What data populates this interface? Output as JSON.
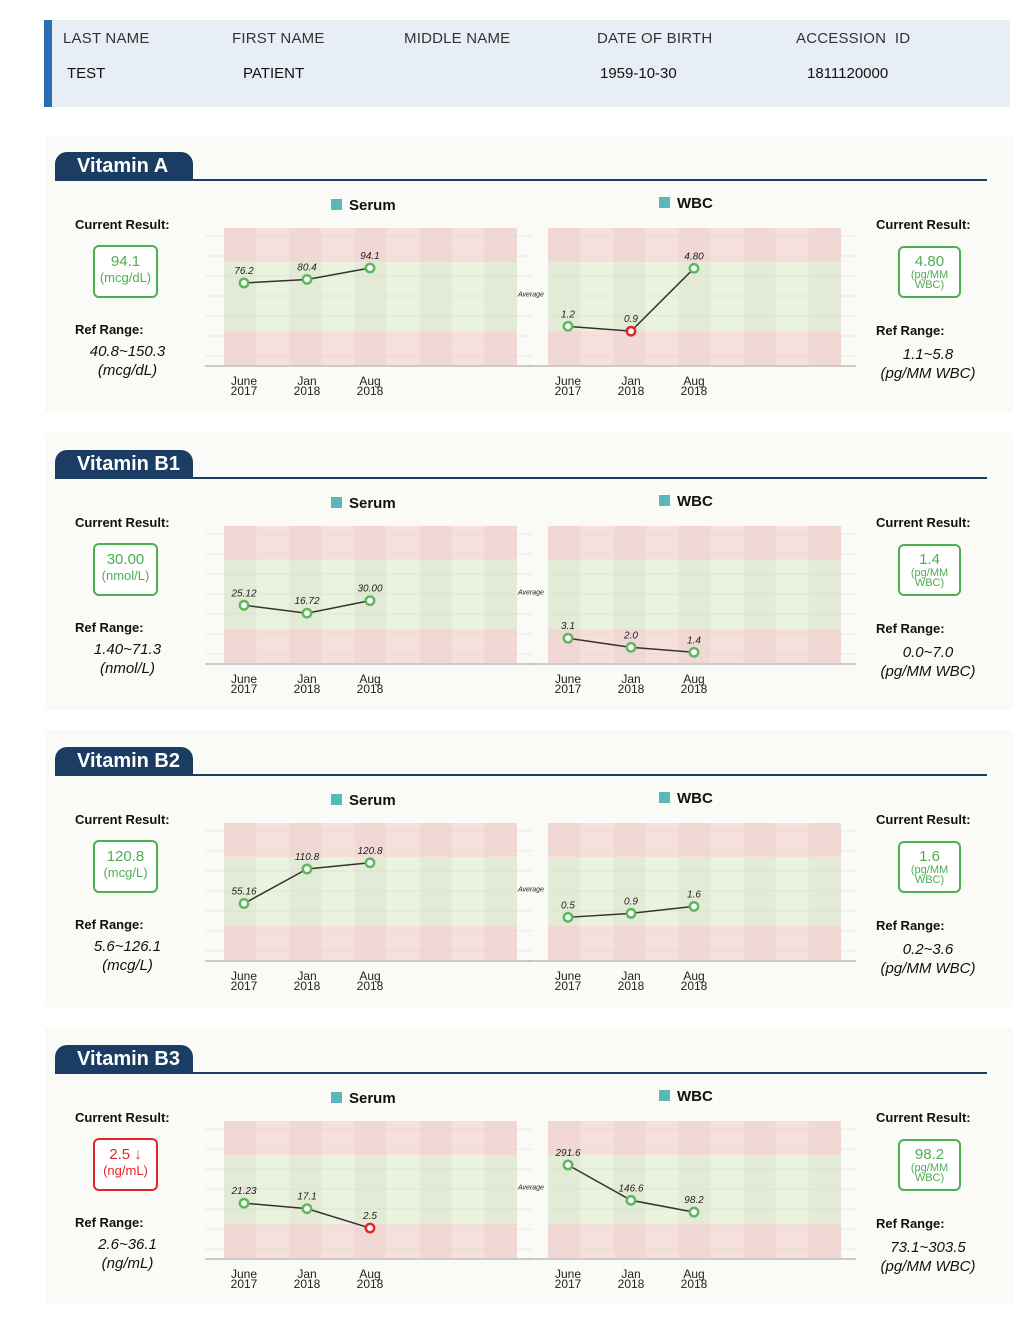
{
  "patient": {
    "headers": [
      "LAST NAME",
      "FIRST NAME",
      "MIDDLE NAME",
      "DATE OF BIRTH",
      "ACCESSION  ID"
    ],
    "values": [
      "TEST",
      "PATIENT",
      "",
      "1959-10-30",
      "1811120000"
    ]
  },
  "labels": {
    "current_result": "Current Result:",
    "ref_range": "Ref Range:",
    "serum": "Serum",
    "wbc": "WBC",
    "average": "Average"
  },
  "colors": {
    "navy": "#1b3d63",
    "normal": "#4caf50",
    "low": "#e0262a",
    "legend": "#5bb8b8"
  },
  "x_labels": [
    [
      "June",
      "2017"
    ],
    [
      "Jan",
      "2018"
    ],
    [
      "Aug",
      "2018"
    ]
  ],
  "sections": [
    {
      "title": "Vitamin A",
      "serum": {
        "current": "94.1",
        "unit": "(mcg/dL)",
        "flag": "normal",
        "ref": "40.8~150.3",
        "ref_unit": "(mcg/dL)",
        "ylim": [
          -22,
          142
        ],
        "points": [
          {
            "label": "76.2",
            "value": 76.2,
            "flag": "normal"
          },
          {
            "label": "80.4",
            "value": 80.4,
            "flag": "normal"
          },
          {
            "label": "94.1",
            "value": 94.1,
            "flag": "normal"
          }
        ]
      },
      "wbc": {
        "current": "4.80",
        "unit": "(pg/MM WBC)",
        "flag": "normal",
        "ref": "1.1~5.8",
        "ref_unit": "(pg/MM WBC)",
        "ylim": [
          -1.2,
          7.3
        ],
        "points": [
          {
            "label": "1.2",
            "value": 1.2,
            "flag": "normal"
          },
          {
            "label": "0.9",
            "value": 0.9,
            "flag": "low"
          },
          {
            "label": "4.80",
            "value": 4.8,
            "flag": "normal"
          }
        ]
      }
    },
    {
      "title": "Vitamin B1",
      "serum": {
        "current": "30.00",
        "unit": "(nmol/L)",
        "flag": "normal",
        "ref": "1.40~71.3",
        "ref_unit": "(nmol/L)",
        "ylim": [
          -36,
          109
        ],
        "points": [
          {
            "label": "25.12",
            "value": 25.12,
            "flag": "normal"
          },
          {
            "label": "16.72",
            "value": 16.72,
            "flag": "normal"
          },
          {
            "label": "30.00",
            "value": 30.0,
            "flag": "normal"
          }
        ]
      },
      "wbc": {
        "current": "1.4",
        "unit": "(pg/MM WBC)",
        "flag": "normal",
        "ref": "0.0~7.0",
        "ref_unit": "(pg/MM WBC)",
        "ylim": [
          0.1,
          16.7
        ],
        "points": [
          {
            "label": "3.1",
            "value": 3.1,
            "flag": "normal"
          },
          {
            "label": "2.0",
            "value": 2.0,
            "flag": "normal"
          },
          {
            "label": "1.4",
            "value": 1.4,
            "flag": "normal"
          }
        ]
      }
    },
    {
      "title": "Vitamin B2",
      "serum": {
        "current": "120.8",
        "unit": "(mcg/L)",
        "flag": "normal",
        "ref": "5.6~126.1",
        "ref_unit": "(mcg/L)",
        "ylim": [
          -36,
          185
        ],
        "points": [
          {
            "label": "55.16",
            "value": 55.16,
            "flag": "normal"
          },
          {
            "label": "110.8",
            "value": 110.8,
            "flag": "normal"
          },
          {
            "label": "120.8",
            "value": 120.8,
            "flag": "normal"
          }
        ]
      },
      "wbc": {
        "current": "1.6",
        "unit": "(pg/MM WBC)",
        "flag": "normal",
        "ref": "0.2~3.6",
        "ref_unit": "(pg/MM WBC)",
        "ylim": [
          -3.8,
          10
        ],
        "points": [
          {
            "label": "0.5",
            "value": 0.5,
            "flag": "normal"
          },
          {
            "label": "0.9",
            "value": 0.9,
            "flag": "normal"
          },
          {
            "label": "1.6",
            "value": 1.6,
            "flag": "normal"
          }
        ]
      }
    },
    {
      "title": "Vitamin B3",
      "serum": {
        "current": "2.5 ↓",
        "unit": "(ng/mL)",
        "flag": "low",
        "ref": "2.6~36.1",
        "ref_unit": "(ng/mL)",
        "ylim": [
          -20,
          83
        ],
        "points": [
          {
            "label": "21.23",
            "value": 21.23,
            "flag": "normal"
          },
          {
            "label": "17.1",
            "value": 17.1,
            "flag": "normal"
          },
          {
            "label": "2.5",
            "value": 2.5,
            "flag": "low"
          }
        ]
      },
      "wbc": {
        "current": "98.2",
        "unit": "(pg/MM WBC)",
        "flag": "normal",
        "ref": "73.1~303.5",
        "ref_unit": "(pg/MM WBC)",
        "ylim": [
          -90,
          472
        ],
        "points": [
          {
            "label": "291.6",
            "value": 291.6,
            "flag": "normal"
          },
          {
            "label": "146.6",
            "value": 146.6,
            "flag": "normal"
          },
          {
            "label": "98.2",
            "value": 98.2,
            "flag": "normal"
          }
        ]
      }
    }
  ]
}
